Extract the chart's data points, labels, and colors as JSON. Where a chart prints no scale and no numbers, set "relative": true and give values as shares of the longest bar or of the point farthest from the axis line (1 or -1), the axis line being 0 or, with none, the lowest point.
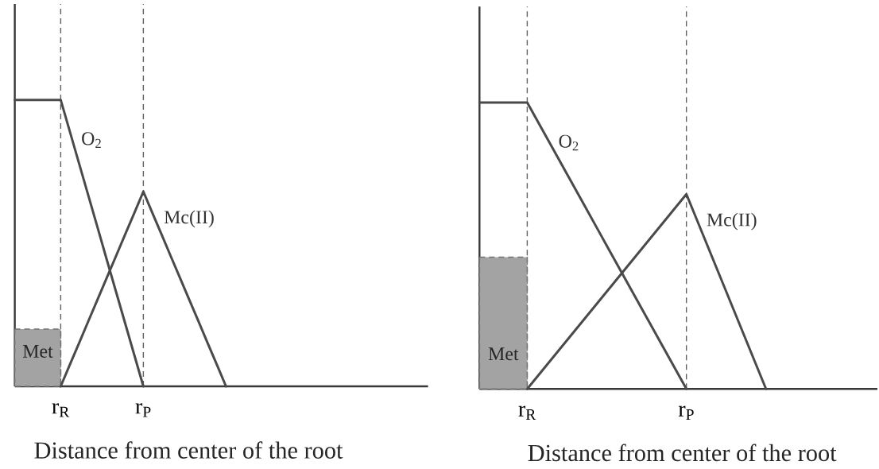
{
  "chart_data": [
    {
      "type": "line",
      "relative": true,
      "xlabel": "Distance from center of the root",
      "grid": "x",
      "categories": [
        null,
        null,
        null,
        null,
        null,
        "r$_{R}$",
        null,
        null,
        null,
        null,
        null,
        null,
        null,
        null,
        "r$_{P}$",
        null,
        null,
        null,
        null,
        null,
        null,
        null,
        null,
        null,
        null,
        null,
        null,
        null,
        null,
        null,
        null,
        null,
        null,
        null,
        null,
        null,
        null,
        null,
        null,
        null,
        null,
        null,
        null,
        null,
        null,
        null
      ],
      "series": [
        {
          "name": "Met",
          "type": "area",
          "color": "#a3a3a3",
          "line_style": "dashed",
          "values": [
            0.2,
            0.2,
            0.2,
            0.2,
            0.2,
            0.2,
            null,
            null,
            null,
            null,
            null,
            null,
            null,
            null,
            null,
            null,
            null,
            null,
            null,
            null,
            null,
            null,
            null,
            null,
            null,
            null,
            null,
            null,
            null,
            null,
            null,
            null,
            null,
            null,
            null,
            null,
            null,
            null,
            null,
            null,
            null,
            null,
            null,
            null,
            null,
            null
          ]
        },
        {
          "name": "O$_{2}$",
          "color": "#4a4a4a",
          "values": [
            1,
            1,
            1,
            1,
            1,
            1,
            0.889,
            0.778,
            0.667,
            0.556,
            0.444,
            0.333,
            0.222,
            0.111,
            0,
            null,
            null,
            null,
            null,
            null,
            null,
            null,
            null,
            null,
            null,
            null,
            null,
            null,
            null,
            null,
            null,
            null,
            null,
            null,
            null,
            null,
            null,
            null,
            null,
            null,
            null,
            null,
            null,
            null,
            null,
            null
          ]
        },
        {
          "name": "Mc(II)",
          "color": "#4a4a4a",
          "values": [
            null,
            null,
            null,
            null,
            null,
            0,
            0.076,
            0.151,
            0.227,
            0.302,
            0.378,
            0.453,
            0.529,
            0.604,
            0.68,
            0.604,
            0.529,
            0.453,
            0.378,
            0.302,
            0.227,
            0.151,
            0.076,
            0,
            null,
            null,
            null,
            null,
            null,
            null,
            null,
            null,
            null,
            null,
            null,
            null,
            null,
            null,
            null,
            null,
            null,
            null,
            null,
            null,
            null,
            null
          ]
        }
      ]
    },
    {
      "type": "line",
      "relative": true,
      "xlabel": "Distance from center of the root",
      "grid": "x",
      "categories": [
        null,
        null,
        null,
        null,
        null,
        null,
        "r$_{R}$",
        null,
        null,
        null,
        null,
        null,
        null,
        null,
        null,
        null,
        null,
        null,
        null,
        null,
        null,
        null,
        null,
        null,
        null,
        null,
        "r$_{P}$",
        null,
        null,
        null,
        null,
        null,
        null,
        null,
        null,
        null,
        null,
        null,
        null,
        null,
        null,
        null,
        null,
        null,
        null,
        null,
        null,
        null,
        null,
        null,
        null
      ],
      "series": [
        {
          "name": "Met",
          "type": "area",
          "color": "#a3a3a3",
          "line_style": "dashed",
          "values": [
            0.46,
            0.46,
            0.46,
            0.46,
            0.46,
            0.46,
            0.46,
            null,
            null,
            null,
            null,
            null,
            null,
            null,
            null,
            null,
            null,
            null,
            null,
            null,
            null,
            null,
            null,
            null,
            null,
            null,
            null,
            null,
            null,
            null,
            null,
            null,
            null,
            null,
            null,
            null,
            null,
            null,
            null,
            null,
            null,
            null,
            null,
            null,
            null,
            null,
            null,
            null,
            null,
            null,
            null
          ]
        },
        {
          "name": "O$_{2}$",
          "color": "#4a4a4a",
          "values": [
            1,
            1,
            1,
            1,
            1,
            1,
            1,
            0.95,
            0.9,
            0.85,
            0.8,
            0.75,
            0.7,
            0.65,
            0.6,
            0.55,
            0.5,
            0.45,
            0.4,
            0.35,
            0.3,
            0.25,
            0.2,
            0.15,
            0.1,
            0.05,
            0,
            null,
            null,
            null,
            null,
            null,
            null,
            null,
            null,
            null,
            null,
            null,
            null,
            null,
            null,
            null,
            null,
            null,
            null,
            null,
            null,
            null,
            null,
            null,
            null
          ]
        },
        {
          "name": "Mc(II)",
          "color": "#4a4a4a",
          "values": [
            null,
            null,
            null,
            null,
            null,
            null,
            0,
            0.034,
            0.068,
            0.102,
            0.136,
            0.17,
            0.204,
            0.238,
            0.272,
            0.306,
            0.34,
            0.374,
            0.408,
            0.442,
            0.476,
            0.51,
            0.544,
            0.578,
            0.612,
            0.646,
            0.68,
            0.612,
            0.544,
            0.476,
            0.408,
            0.34,
            0.272,
            0.204,
            0.136,
            0.068,
            0,
            null,
            null,
            null,
            null,
            null,
            null,
            null,
            null,
            null,
            null,
            null,
            null,
            null,
            null
          ]
        }
      ]
    }
  ]
}
